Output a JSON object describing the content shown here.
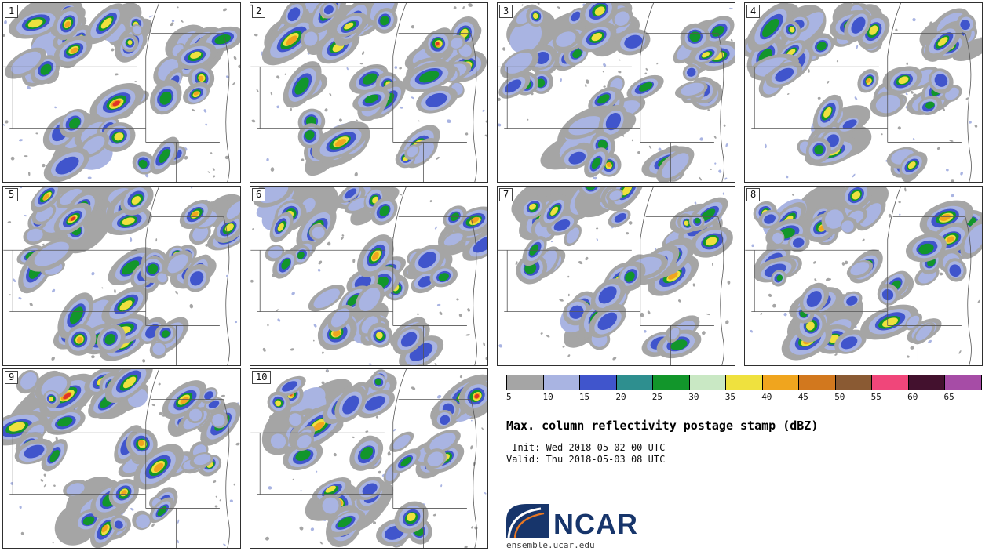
{
  "meta": {
    "title": "Max. column reflectivity postage stamp (dBZ)",
    "init_line": " Init: Wed 2018-05-02 00 UTC",
    "valid_line": "Valid: Thu 2018-05-03 08 UTC",
    "logo_text": "NCAR",
    "credit": "ensemble.ucar.edu"
  },
  "panels": [
    {
      "label": "1"
    },
    {
      "label": "2"
    },
    {
      "label": "3"
    },
    {
      "label": "4"
    },
    {
      "label": "5"
    },
    {
      "label": "6"
    },
    {
      "label": "7"
    },
    {
      "label": "8"
    },
    {
      "label": "9"
    },
    {
      "label": "10"
    }
  ],
  "chart_data": {
    "type": "heatmap",
    "title": "Max. column reflectivity postage stamp (dBZ)",
    "variable": "Max. column reflectivity",
    "units": "dBZ",
    "init": "Wed 2018-05-02 00 UTC",
    "valid": "Thu 2018-05-03 08 UTC",
    "ensemble_members": [
      "1",
      "2",
      "3",
      "4",
      "5",
      "6",
      "7",
      "8",
      "9",
      "10"
    ],
    "panel_grid_rows": [
      4,
      4,
      2
    ],
    "legend_position": "bottom-right",
    "colorbar": {
      "units": "dBZ",
      "ticks": [
        5,
        10,
        15,
        20,
        25,
        30,
        35,
        40,
        45,
        50,
        55,
        60,
        65
      ],
      "colors": [
        "#a5a5a5",
        "#a9b4e2",
        "#4055cc",
        "#2e8f8f",
        "#12962b",
        "#c9e8c4",
        "#efe13e",
        "#f0a51e",
        "#d2781e",
        "#8a5a33",
        "#f0467a",
        "#43112e",
        "#a64ca6"
      ]
    }
  }
}
